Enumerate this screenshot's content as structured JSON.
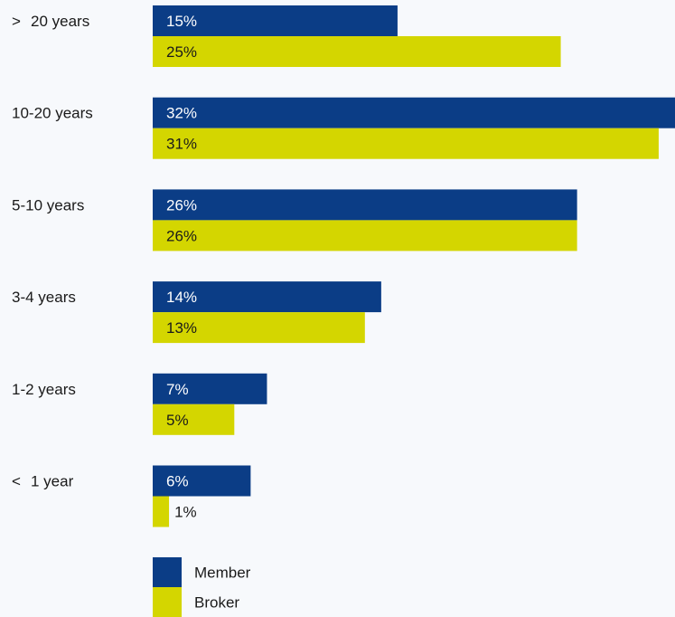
{
  "chart_data": {
    "type": "bar",
    "orientation": "horizontal",
    "categories": [
      "> 20 years",
      "10-20 years",
      "5-10 years",
      "3-4 years",
      "1-2 years",
      "< 1 year"
    ],
    "series": [
      {
        "name": "Member",
        "values": [
          15,
          32,
          26,
          14,
          7,
          6
        ],
        "labels": [
          "15%",
          "32%",
          "26%",
          "14%",
          "7%",
          "6%"
        ],
        "color": "#0b3d86"
      },
      {
        "name": "Broker",
        "values": [
          25,
          31,
          26,
          13,
          5,
          1
        ],
        "labels": [
          "25%",
          "31%",
          "26%",
          "13%",
          "5%",
          "1%"
        ],
        "color": "#d4d600"
      }
    ],
    "xlim": [
      0,
      32
    ],
    "grid": false,
    "legend_position": "bottom"
  }
}
